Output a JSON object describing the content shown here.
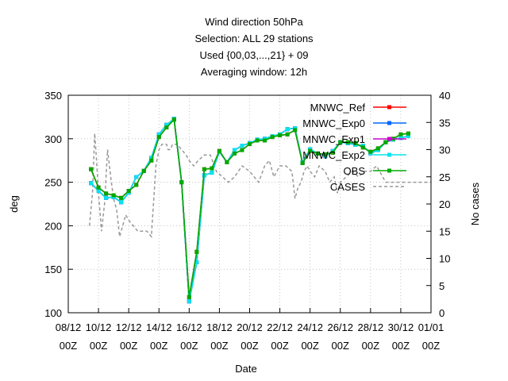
{
  "chart_data": {
    "type": "line",
    "title_lines": [
      "Wind direction 50hPa",
      "Selection: ALL      29 stations",
      "Used {00,03,...,21} + 09",
      "Averaging window: 12h"
    ],
    "xlabel": "Date",
    "ylabel": "deg",
    "y2label": "No cases",
    "xlim": [
      0,
      24
    ],
    "ylim": [
      100,
      350
    ],
    "y2lim": [
      0,
      40
    ],
    "x_tick_labels": [
      {
        "x": 0,
        "top": "08/12",
        "bottom": "00Z"
      },
      {
        "x": 2,
        "top": "10/12",
        "bottom": "00Z"
      },
      {
        "x": 4,
        "top": "12/12",
        "bottom": "00Z"
      },
      {
        "x": 6,
        "top": "14/12",
        "bottom": "00Z"
      },
      {
        "x": 8,
        "top": "16/12",
        "bottom": "00Z"
      },
      {
        "x": 10,
        "top": "18/12",
        "bottom": "00Z"
      },
      {
        "x": 12,
        "top": "20/12",
        "bottom": "00Z"
      },
      {
        "x": 14,
        "top": "22/12",
        "bottom": "00Z"
      },
      {
        "x": 16,
        "top": "24/12",
        "bottom": "00Z"
      },
      {
        "x": 18,
        "top": "26/12",
        "bottom": "00Z"
      },
      {
        "x": 20,
        "top": "28/12",
        "bottom": "00Z"
      },
      {
        "x": 22,
        "top": "30/12",
        "bottom": "00Z"
      },
      {
        "x": 24,
        "top": "01/01",
        "bottom": "00Z"
      }
    ],
    "y_ticks": [
      100,
      150,
      200,
      250,
      300,
      350
    ],
    "y2_ticks": [
      0,
      5,
      10,
      15,
      20,
      25,
      30,
      35,
      40
    ],
    "legend_position": "top-right",
    "grid": true,
    "x_unit_note": "x in days after 08/12 00Z",
    "series": [
      {
        "name": "MNWC_Ref",
        "color": "#ff0000",
        "marker": "square",
        "x": [
          1.5,
          2,
          2.5,
          3,
          3.5,
          4,
          4.5,
          5,
          5.5,
          6,
          6.5,
          7,
          7.5,
          8,
          8.5,
          9,
          9.5,
          10,
          10.5,
          11,
          11.5,
          12,
          12.5,
          13,
          13.5,
          14,
          14.5,
          15,
          15.5,
          16,
          16.5,
          17,
          17.5,
          18,
          18.5,
          19,
          19.5,
          20,
          20.5,
          21,
          21.5,
          22,
          22.5
        ],
        "y": [
          265,
          244,
          237,
          235,
          232,
          240,
          247,
          263,
          275,
          302,
          313,
          322,
          250,
          118,
          170,
          265,
          266,
          286,
          273,
          283,
          287,
          294,
          298,
          298,
          302,
          304,
          305,
          310,
          272,
          286,
          283,
          282,
          284,
          296,
          296,
          295,
          290,
          285,
          289,
          296,
          300,
          305,
          306
        ]
      },
      {
        "name": "MNWC_Exp0",
        "color": "#0066ff",
        "marker": "square",
        "x": [
          1.5,
          2,
          2.5,
          3,
          3.5,
          4,
          4.5,
          5,
          5.5,
          6,
          6.5,
          7,
          7.5,
          8,
          8.5,
          9,
          9.5,
          10,
          10.5,
          11,
          11.5,
          12,
          12.5,
          13,
          13.5,
          14,
          14.5,
          15,
          15.5,
          16,
          16.5,
          17,
          17.5,
          18,
          18.5,
          19,
          19.5,
          20,
          20.5,
          21,
          21.5,
          22,
          22.5
        ],
        "y": [
          249,
          240,
          232,
          233,
          227,
          238,
          256,
          263,
          278,
          305,
          316,
          323,
          250,
          113,
          158,
          258,
          261,
          285,
          273,
          287,
          292,
          295,
          299,
          300,
          303,
          305,
          311,
          312,
          273,
          288,
          283,
          280,
          286,
          296,
          295,
          293,
          292,
          283,
          287,
          296,
          299,
          301,
          303
        ]
      },
      {
        "name": "MNWC_Exp1",
        "color": "#cc00cc",
        "marker": "square",
        "x": [
          1.5,
          2,
          2.5,
          3,
          3.5,
          4,
          4.5,
          5,
          5.5,
          6,
          6.5,
          7,
          7.5,
          8,
          8.5,
          9,
          9.5,
          10,
          10.5,
          11,
          11.5,
          12,
          12.5,
          13,
          13.5,
          14,
          14.5,
          15,
          15.5,
          16,
          16.5,
          17,
          17.5,
          18,
          18.5,
          19,
          19.5,
          20,
          20.5,
          21,
          21.5,
          22,
          22.5
        ],
        "y": [
          249,
          240,
          232,
          233,
          227,
          238,
          256,
          263,
          278,
          305,
          316,
          323,
          250,
          113,
          158,
          258,
          261,
          285,
          273,
          287,
          292,
          295,
          299,
          300,
          303,
          305,
          311,
          312,
          273,
          288,
          283,
          280,
          286,
          296,
          295,
          293,
          292,
          283,
          287,
          296,
          299,
          301,
          303
        ]
      },
      {
        "name": "MNWC_Exp2",
        "color": "#00e5ee",
        "marker": "square",
        "x": [
          1.5,
          2,
          2.5,
          3,
          3.5,
          4,
          4.5,
          5,
          5.5,
          6,
          6.5,
          7,
          7.5,
          8,
          8.5,
          9,
          9.5,
          10,
          10.5,
          11,
          11.5,
          12,
          12.5,
          13,
          13.5,
          14,
          14.5,
          15,
          15.5,
          16,
          16.5,
          17,
          17.5,
          18,
          18.5,
          19,
          19.5,
          20,
          20.5,
          21,
          21.5,
          22,
          22.5
        ],
        "y": [
          249,
          240,
          232,
          233,
          227,
          238,
          256,
          263,
          278,
          305,
          316,
          323,
          250,
          113,
          158,
          258,
          261,
          285,
          273,
          287,
          292,
          295,
          299,
          300,
          303,
          305,
          311,
          312,
          273,
          288,
          283,
          280,
          286,
          296,
          295,
          293,
          292,
          283,
          287,
          296,
          299,
          301,
          303
        ]
      },
      {
        "name": "OBS",
        "color": "#00aa00",
        "marker": "square",
        "x": [
          1.5,
          2,
          2.5,
          3,
          3.5,
          4,
          4.5,
          5,
          5.5,
          6,
          6.5,
          7,
          7.5,
          8,
          8.5,
          9,
          9.5,
          10,
          10.5,
          11,
          11.5,
          12,
          12.5,
          13,
          13.5,
          14,
          14.5,
          15,
          15.5,
          16,
          16.5,
          17,
          17.5,
          18,
          18.5,
          19,
          19.5,
          20,
          20.5,
          21,
          21.5,
          22,
          22.5
        ],
        "y": [
          265,
          244,
          237,
          235,
          232,
          240,
          247,
          263,
          275,
          302,
          313,
          322,
          250,
          118,
          170,
          265,
          266,
          286,
          273,
          283,
          287,
          294,
          298,
          298,
          302,
          304,
          305,
          310,
          272,
          286,
          283,
          282,
          284,
          296,
          296,
          295,
          290,
          285,
          289,
          296,
          300,
          305,
          306
        ]
      }
    ],
    "cases": {
      "name": "CASES",
      "color": "#999999",
      "axis": "y2",
      "x": [
        1.4,
        1.6,
        1.75,
        1.85,
        2,
        2.2,
        2.4,
        2.6,
        2.85,
        3,
        3.2,
        3.4,
        3.6,
        3.8,
        4,
        4.3,
        4.6,
        4.9,
        5.2,
        5.5,
        5.8,
        6,
        6.2,
        6.5,
        6.6,
        6.75,
        6.9,
        7.2,
        7.5,
        7.8,
        8,
        8.3,
        8.6,
        9,
        9.4,
        9.8,
        10.2,
        10.6,
        11,
        11.5,
        12,
        12.3,
        12.6,
        13,
        13.3,
        13.6,
        14,
        14.4,
        14.8,
        15,
        15.2,
        15.4,
        15.6,
        15.8,
        16,
        16.3,
        16.6,
        17,
        17.3,
        17.6,
        17.8,
        18,
        18.4,
        18.8,
        19.2,
        19.6,
        20,
        20.4,
        20.8,
        21,
        21.4,
        21.8,
        22.2,
        22.6,
        23,
        24
      ],
      "y": [
        16,
        22,
        33,
        29,
        22,
        15,
        20,
        30,
        24,
        21,
        19,
        14,
        16,
        18,
        17,
        16,
        15,
        15,
        15,
        14,
        27,
        30,
        31,
        31,
        30,
        30,
        31,
        31,
        30,
        29,
        28,
        27,
        28,
        29,
        29,
        26,
        25,
        24,
        25,
        27,
        26,
        25,
        24,
        27,
        28,
        25,
        27,
        27,
        26,
        21,
        23,
        24,
        26,
        27,
        26,
        25,
        27,
        26,
        24,
        25,
        22,
        24,
        25,
        26,
        25,
        26,
        26,
        27,
        25,
        24,
        24,
        24,
        24,
        24,
        24,
        24
      ]
    }
  }
}
